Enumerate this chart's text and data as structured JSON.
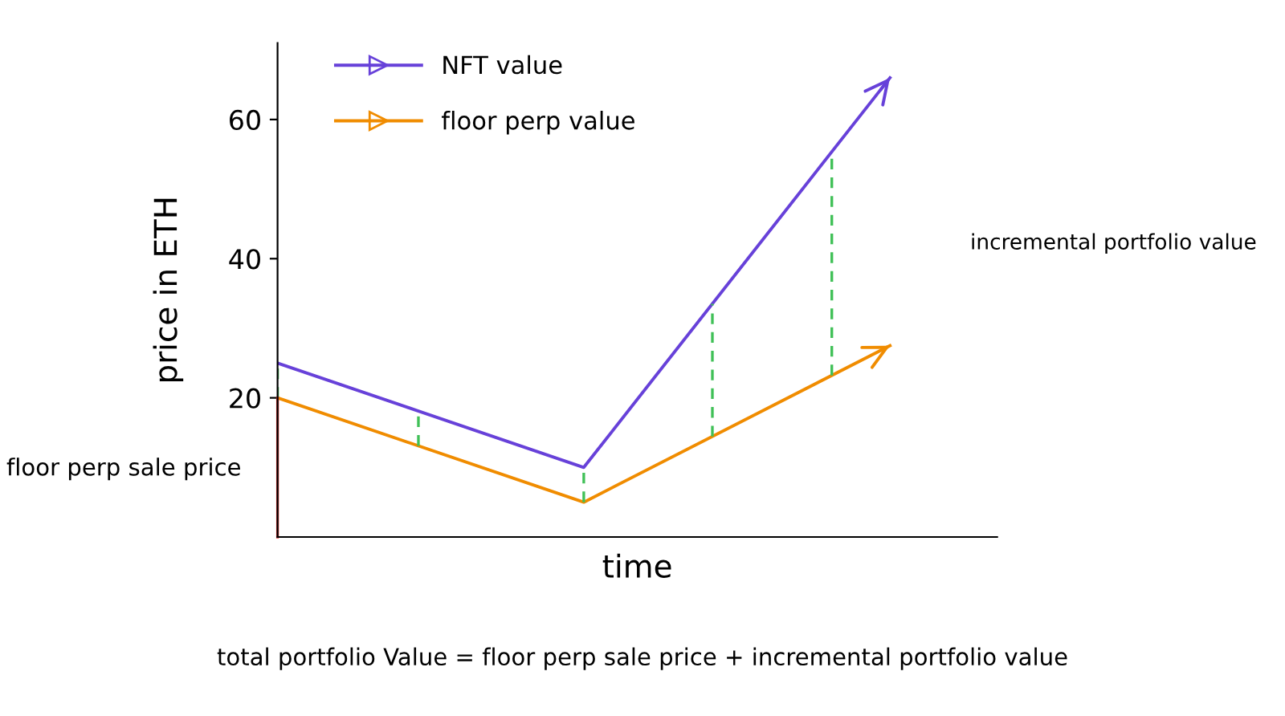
{
  "chart_data": {
    "type": "line",
    "ylabel": "price in ETH",
    "xlabel": "time",
    "categories": [
      null,
      null,
      null
    ],
    "series": [
      {
        "name": "NFT value",
        "color": "#6741d9",
        "values": [
          25,
          10,
          66
        ]
      },
      {
        "name": "floor perp value",
        "color": "#f08c00",
        "values": [
          20,
          5,
          27.5
        ]
      }
    ],
    "ylim": [
      0,
      71
    ],
    "yticks": [
      20,
      40,
      60
    ],
    "grid": false,
    "legend": "top left",
    "line_style": "solid",
    "marker": "none",
    "annotations": [
      "floor perp sale price",
      "incremental portfolio value",
      "total portfolio Value = floor perp sale price + incremental portfolio value"
    ]
  }
}
